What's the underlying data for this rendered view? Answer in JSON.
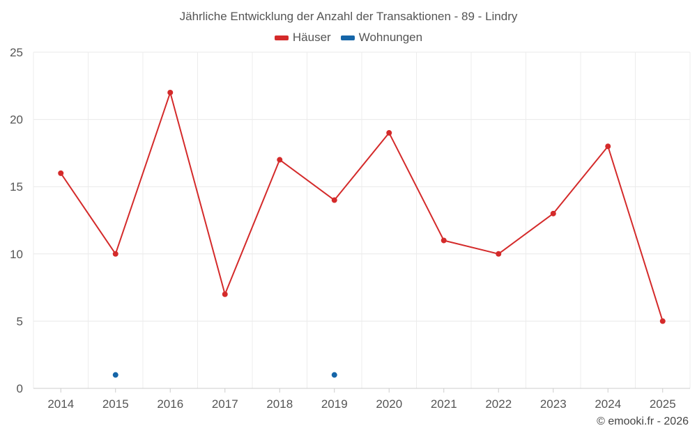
{
  "chart_data": {
    "type": "line",
    "title": "Jährliche Entwicklung der Anzahl der Transaktionen - 89 - Lindry",
    "categories": [
      "2014",
      "2015",
      "2016",
      "2017",
      "2018",
      "2019",
      "2020",
      "2021",
      "2022",
      "2023",
      "2024",
      "2025"
    ],
    "series": [
      {
        "name": "Häuser",
        "color": "#d42a2a",
        "values": [
          16,
          10,
          22,
          7,
          17,
          14,
          19,
          11,
          10,
          13,
          18,
          5
        ],
        "line": true
      },
      {
        "name": "Wohnungen",
        "color": "#1565a8",
        "values": [
          null,
          1,
          null,
          null,
          null,
          1,
          null,
          null,
          null,
          null,
          null,
          null
        ],
        "line": false
      }
    ],
    "ylim": [
      0,
      25
    ],
    "yticks": [
      0,
      5,
      10,
      15,
      20,
      25
    ],
    "xlabel": "",
    "ylabel": "",
    "grid": true,
    "legend": "top-center"
  },
  "credit": "© emooki.fr - 2026"
}
